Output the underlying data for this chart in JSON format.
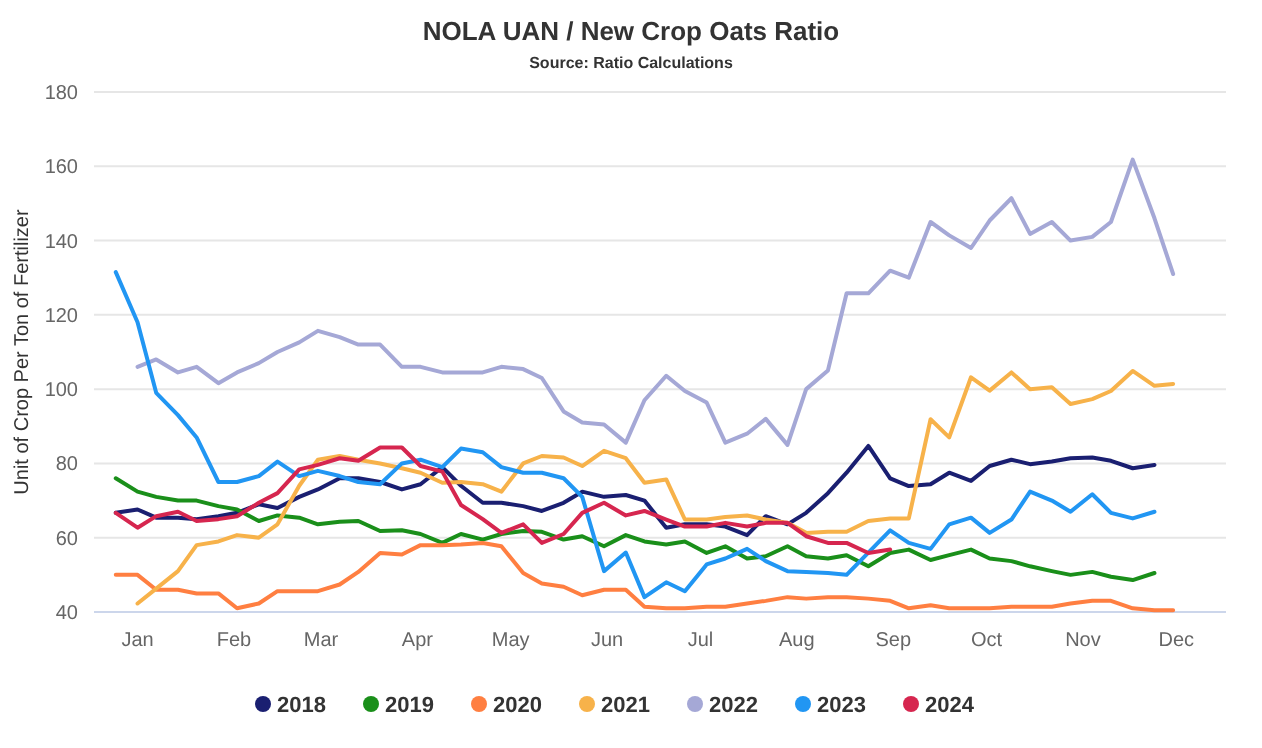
{
  "chart_data": {
    "type": "line",
    "title": "NOLA UAN / New Crop Oats Ratio",
    "subtitle": "Source: Ratio Calculations",
    "ylabel": "Unit of Crop Per Ton of Fertilizer",
    "x": [
      "--01-08",
      "--01-15",
      "--01-21",
      "--01-28",
      "--02-03",
      "--02-10",
      "--02-16",
      "--02-23",
      "--03-01",
      "--03-08",
      "--03-14",
      "--03-21",
      "--03-27",
      "--04-03",
      "--04-10",
      "--04-16",
      "--04-23",
      "--04-29",
      "--05-06",
      "--05-12",
      "--05-19",
      "--05-25",
      "--06-01",
      "--06-07",
      "--06-14",
      "--06-21",
      "--06-27",
      "--07-04",
      "--07-10",
      "--07-17",
      "--07-23",
      "--07-30",
      "--08-05",
      "--08-12",
      "--08-18",
      "--08-25",
      "--08-31",
      "--09-07",
      "--09-14",
      "--09-20",
      "--09-27",
      "--10-03",
      "--10-10",
      "--10-16",
      "--10-23",
      "--10-29",
      "--11-05",
      "--11-11",
      "--11-18",
      "--11-24",
      "--12-01",
      "--12-08",
      "--12-14"
    ],
    "xlim": [
      "--01-01",
      "--12-31"
    ],
    "xticks": [
      {
        "value": "--01-15",
        "label": "Jan"
      },
      {
        "value": "--02-15",
        "label": "Feb"
      },
      {
        "value": "--03-15",
        "label": "Mar"
      },
      {
        "value": "--04-15",
        "label": "Apr"
      },
      {
        "value": "--05-15",
        "label": "May"
      },
      {
        "value": "--06-15",
        "label": "Jun"
      },
      {
        "value": "--07-15",
        "label": "Jul"
      },
      {
        "value": "--08-15",
        "label": "Aug"
      },
      {
        "value": "--09-15",
        "label": "Sep"
      },
      {
        "value": "--10-15",
        "label": "Oct"
      },
      {
        "value": "--11-15",
        "label": "Nov"
      },
      {
        "value": "--12-15",
        "label": "Dec"
      }
    ],
    "ylim": [
      40,
      180
    ],
    "yticks": [
      40,
      60,
      80,
      100,
      120,
      140,
      160,
      180
    ],
    "grid": "y",
    "legend": "bottom",
    "marker": "none",
    "line_style": "solid",
    "series": [
      {
        "name": "2018",
        "color": "#1a1f71",
        "values": [
          66.7,
          67.6,
          65.4,
          65.4,
          65,
          65.8,
          66.7,
          69,
          68,
          71,
          73,
          76,
          76,
          75,
          73,
          74.4,
          79,
          74,
          69.4,
          69.4,
          68.5,
          67.2,
          69.4,
          72.4,
          71,
          71.5,
          70,
          62.7,
          63.6,
          63.6,
          63,
          60.7,
          65.8,
          63.6,
          66.7,
          72,
          77.5,
          84.7,
          76,
          73.9,
          74.4,
          77.5,
          75.3,
          79.3,
          81,
          79.8,
          80.5,
          81.4,
          81.6,
          80.7,
          78.7,
          79.6,
          null
        ]
      },
      {
        "name": "2019",
        "color": "#1a8f1a",
        "values": [
          76,
          72.4,
          71,
          70,
          70,
          68.5,
          67.6,
          64.5,
          66,
          65.4,
          63.6,
          64.3,
          64.5,
          61.8,
          62,
          61,
          58.6,
          61,
          59.5,
          61,
          61.8,
          61.6,
          59.5,
          60.4,
          57.7,
          60.7,
          59,
          58.2,
          59,
          55.9,
          57.7,
          54.4,
          55,
          57.7,
          55,
          54.4,
          55.3,
          52.3,
          55.9,
          56.8,
          54,
          55.3,
          56.8,
          54.4,
          53.7,
          52.3,
          51,
          50,
          50.8,
          49.5,
          48.6,
          50.5,
          null
        ]
      },
      {
        "name": "2020",
        "color": "#ff7f41",
        "values": [
          50,
          50,
          46,
          46,
          45,
          45,
          41,
          42.3,
          45.6,
          45.6,
          45.6,
          47.4,
          50.8,
          55.9,
          55.5,
          58,
          58,
          58.2,
          58.6,
          57.7,
          50.5,
          47.7,
          46.8,
          44.5,
          46,
          46,
          41.4,
          41,
          41,
          41.4,
          41.4,
          42.3,
          43,
          44,
          43.6,
          44,
          44,
          43.6,
          43,
          41,
          41.8,
          41,
          41,
          41,
          41.4,
          41.4,
          41.4,
          42.3,
          43,
          43,
          41,
          40.5,
          40.5
        ]
      },
      {
        "name": "2021",
        "color": "#f7b24a",
        "values": [
          null,
          42.3,
          46.3,
          51,
          58,
          59,
          60.7,
          60,
          63.6,
          74,
          81,
          82,
          81,
          80,
          78.7,
          77.5,
          74.8,
          75,
          74.4,
          72.4,
          80,
          82,
          81.6,
          79.3,
          83.4,
          81.4,
          74.8,
          75.7,
          64.9,
          64.9,
          65.6,
          66,
          64.9,
          64,
          61.3,
          61.6,
          61.6,
          64.5,
          65.2,
          65.2,
          91.9,
          87,
          103.2,
          99.6,
          104.5,
          100,
          100.5,
          96,
          97.3,
          99.5,
          104.9,
          100.9,
          101.4
        ]
      },
      {
        "name": "2022",
        "color": "#a5a8d6",
        "values": [
          null,
          106,
          108,
          104.5,
          106,
          101.6,
          104.5,
          107,
          110,
          112.6,
          115.7,
          114,
          112,
          112,
          106,
          106,
          104.5,
          104.5,
          104.5,
          106,
          105.4,
          103,
          94,
          91,
          90.5,
          85.6,
          97,
          103.6,
          99.5,
          96.4,
          85.6,
          88,
          92,
          85,
          100,
          105,
          125.8,
          125.8,
          131.9,
          130,
          145,
          141.4,
          138,
          145.4,
          151.4,
          141.8,
          145,
          140,
          141,
          145,
          161.8,
          146,
          131
        ]
      },
      {
        "name": "2023",
        "color": "#2196f3",
        "values": [
          131.5,
          118,
          99,
          93,
          87,
          75,
          75,
          76.6,
          80.5,
          76.6,
          78,
          76.6,
          75,
          74.4,
          80,
          81,
          79,
          84,
          83,
          79,
          77.5,
          77.5,
          76,
          71,
          51,
          56,
          44,
          48,
          45.6,
          52.8,
          54.4,
          57,
          53.7,
          51,
          50.8,
          50.5,
          50,
          56,
          62,
          58.6,
          57,
          63.6,
          65.4,
          61.3,
          64.9,
          72.4,
          70,
          67,
          71.7,
          66.7,
          65.2,
          67,
          null
        ]
      },
      {
        "name": "2024",
        "color": "#d6264f",
        "values": [
          66.7,
          62.7,
          65.8,
          67,
          64.5,
          65,
          65.8,
          69.4,
          72,
          78.4,
          79.6,
          81.4,
          80.7,
          84.3,
          84.3,
          79.3,
          77.8,
          68.8,
          65,
          61.3,
          63.6,
          58.6,
          61,
          66.7,
          69.4,
          66,
          67.2,
          64.9,
          63,
          63,
          64,
          63,
          64,
          64,
          60.4,
          58.6,
          58.6,
          55.9,
          56.8,
          null,
          null,
          null,
          null,
          null,
          null,
          null,
          null,
          null,
          null,
          null,
          null,
          null,
          null
        ]
      }
    ]
  }
}
